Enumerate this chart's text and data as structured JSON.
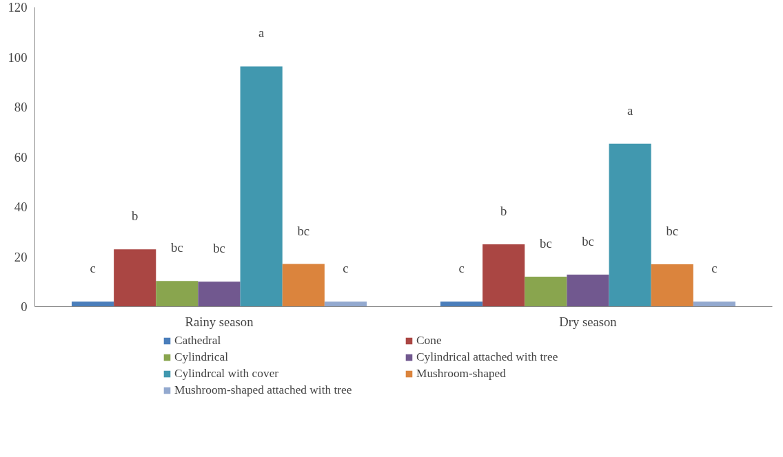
{
  "chart_data": {
    "type": "bar",
    "categories": [
      "Rainy season",
      "Dry season"
    ],
    "series": [
      {
        "name": "Cathedral",
        "color": "#4a7ebb",
        "values": [
          2,
          2
        ]
      },
      {
        "name": "Cone",
        "color": "#aa4643",
        "values": [
          23,
          25
        ]
      },
      {
        "name": "Cylindrical",
        "color": "#89a54e",
        "values": [
          10.3,
          12
        ]
      },
      {
        "name": "Cylindrical attached with tree",
        "color": "#71588f",
        "values": [
          10,
          12.8
        ]
      },
      {
        "name": "Cylindrcal with cover",
        "color": "#4198af",
        "values": [
          96.3,
          65.3
        ]
      },
      {
        "name": "Mushroom-shaped",
        "color": "#db843d",
        "values": [
          17.1,
          17
        ]
      },
      {
        "name": "Mushroom-shaped attached with tree",
        "color": "#93a9cf",
        "values": [
          2,
          2
        ]
      }
    ],
    "ylim": [
      0,
      120
    ],
    "yticks": [
      0,
      20,
      40,
      60,
      80,
      100,
      120
    ],
    "grid": false,
    "legend": "bottom",
    "annotations": [
      "c",
      "b",
      "bc",
      "bc",
      "a",
      "bc",
      "c",
      "c",
      "b",
      "bc",
      "bc",
      "a",
      "bc",
      "c"
    ]
  }
}
